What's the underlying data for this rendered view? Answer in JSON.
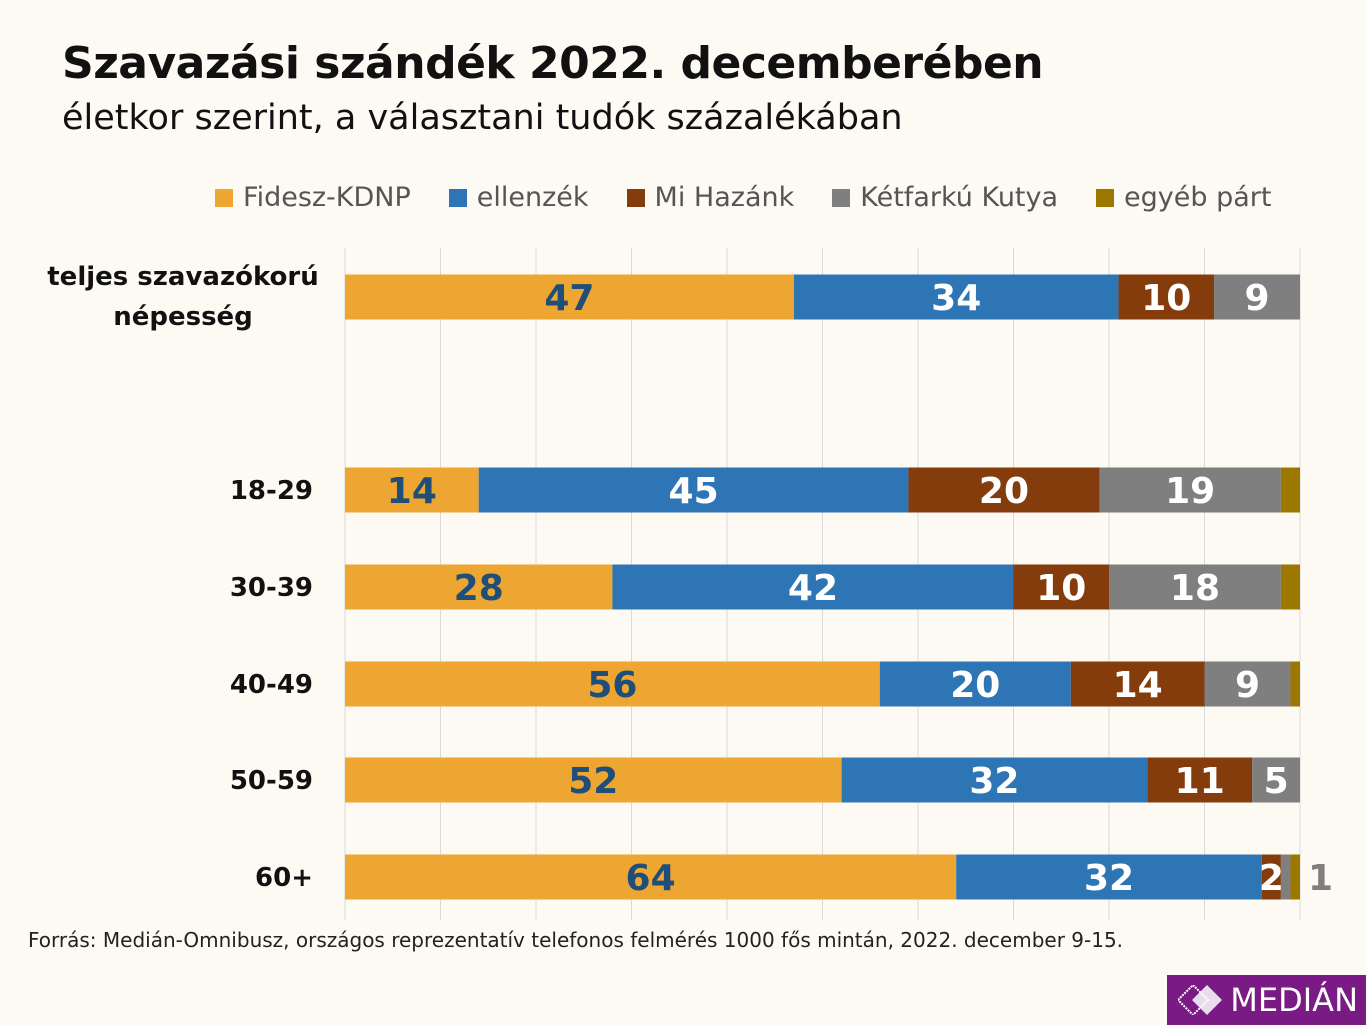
{
  "title": "Szavazási szándék 2022. decemberében",
  "subtitle": "életkor szerint, a választani tudók százalékában",
  "source": "Forrás: Medián-Omnibusz, országos reprezentatív telefonos felmérés 1000 fős mintán, 2022. december 9-15.",
  "logo": "MEDIÁN",
  "chart_data": {
    "type": "bar",
    "orientation": "horizontal",
    "stacked": true,
    "xlim": [
      0,
      100
    ],
    "grid": true,
    "legend_position": "top",
    "categories": [
      "teljes szavazókorú népesség",
      "18-29",
      "30-39",
      "40-49",
      "50-59",
      "60+"
    ],
    "series": [
      {
        "name": "Fidesz-KDNP",
        "color": "#eda631",
        "values": [
          47,
          14,
          28,
          56,
          52,
          64
        ]
      },
      {
        "name": "ellenzék",
        "color": "#2e75b6",
        "values": [
          34,
          45,
          42,
          20,
          32,
          32
        ]
      },
      {
        "name": "Mi Hazánk",
        "color": "#843c0c",
        "values": [
          10,
          20,
          10,
          14,
          11,
          2
        ]
      },
      {
        "name": "Kétfarkú Kutya",
        "color": "#7f7f7f",
        "values": [
          9,
          19,
          18,
          9,
          5,
          1
        ]
      },
      {
        "name": "egyéb párt",
        "color": "#9c7800",
        "values": [
          0,
          2,
          2,
          1,
          0,
          1
        ]
      }
    ],
    "label_colors": [
      "#1f4e79",
      "#ffffff",
      "#ffffff",
      "#ffffff",
      "#ffffff"
    ]
  }
}
